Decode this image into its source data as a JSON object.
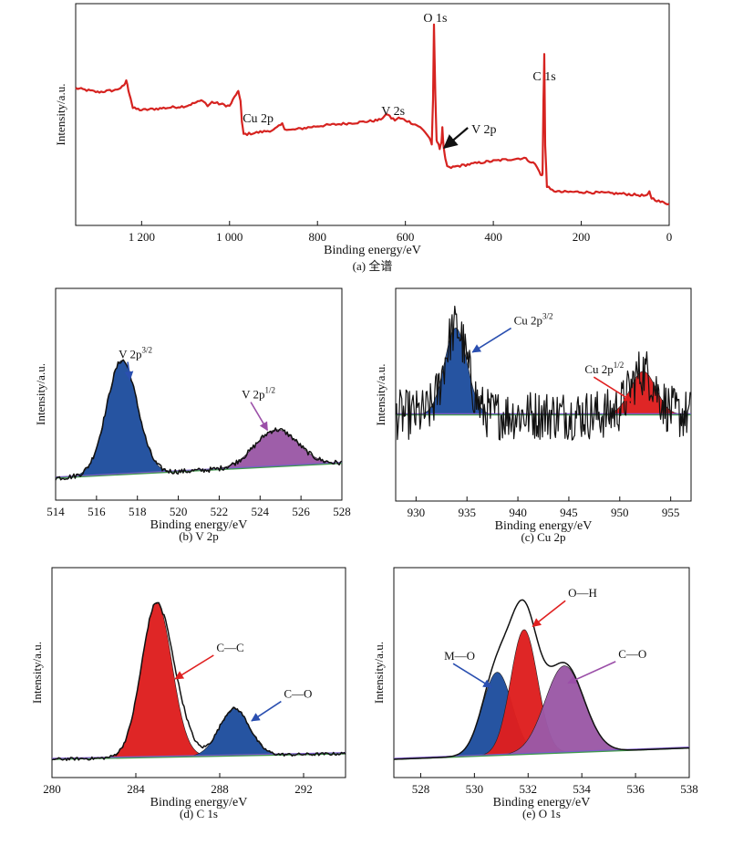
{
  "colors": {
    "survey_line": "#d62320",
    "outline": "#111111",
    "blue_fill": "#1f4e9e",
    "blue_arrow": "#2a4fb0",
    "red_fill": "#de1f1f",
    "red_arrow": "#e02020",
    "purple_fill": "#9b59a6",
    "purple_arrow": "#9b4fa8",
    "baseline_green": "#3f9a4a",
    "baseline_purple": "#7d5cc8"
  },
  "chart_data": [
    {
      "id": "a",
      "type": "line",
      "caption": "(a) 全谱",
      "xlabel": "Binding energy/eV",
      "ylabel": "Intensity/a.u.",
      "xlim": [
        1350,
        0
      ],
      "x_ticks": [
        1200,
        1000,
        800,
        600,
        400,
        200,
        0
      ],
      "x_tick_labels": [
        "1 200",
        "1 000",
        "800",
        "600",
        "400",
        "200",
        "0"
      ],
      "ylim": [
        0,
        100
      ],
      "series": [
        {
          "x": [
            1350,
            1300,
            1260,
            1240,
            1235,
            1230,
            1225,
            1220,
            1200,
            1100,
            1060,
            1050,
            1040,
            1020,
            1000,
            985,
            980,
            975,
            972,
            968,
            960,
            900,
            880,
            875,
            870,
            860,
            800,
            700,
            660,
            640,
            632,
            624,
            615,
            600,
            570,
            555,
            545,
            540,
            537,
            535,
            532,
            529,
            526,
            522,
            518,
            516,
            513,
            509,
            505,
            500,
            480,
            420,
            380,
            330,
            305,
            295,
            290,
            288,
            286,
            284,
            282,
            278,
            270,
            250,
            200,
            100,
            50,
            45,
            40,
            20,
            0
          ],
          "y": [
            61,
            59,
            60,
            62,
            65,
            60,
            56,
            51,
            50,
            52,
            55,
            52,
            54,
            53,
            52,
            58,
            59,
            55,
            44,
            38,
            38,
            40,
            43,
            41,
            40,
            40,
            42,
            44,
            45,
            48,
            46,
            45,
            46,
            45,
            42,
            39,
            36,
            33,
            55,
            93,
            58,
            35,
            33,
            31,
            34,
            41,
            31,
            25,
            22,
            21,
            22,
            24,
            25,
            26,
            23,
            19,
            17,
            18,
            55,
            78,
            32,
            12,
            10,
            9,
            9,
            8,
            7,
            9,
            6,
            4,
            3
          ]
        }
      ],
      "annotations": [
        {
          "text": "O 1s",
          "x": 532
        },
        {
          "text": "C 1s",
          "x": 284
        },
        {
          "text": "V 2s",
          "x": 628
        },
        {
          "text": "Cu 2p",
          "x": 935
        },
        {
          "text": "V 2p",
          "x": 516,
          "arrow": true
        }
      ]
    },
    {
      "id": "b",
      "type": "area",
      "caption": "(b) V 2p",
      "xlabel": "Binding energy/eV",
      "ylabel": "Intensity/a.u.",
      "xlim": [
        514,
        528
      ],
      "x_ticks": [
        514,
        516,
        518,
        520,
        522,
        524,
        526,
        528
      ],
      "ylim": [
        0,
        100
      ],
      "baseline": [
        [
          514,
          4
        ],
        [
          528,
          12
        ]
      ],
      "peaks": [
        {
          "name": "V 2p3/2",
          "label_main": "V 2p",
          "label_sup": "3/2",
          "center": 517.25,
          "height": 62,
          "sigma": 0.75,
          "fill": "blue"
        },
        {
          "name": "V 2p1/2",
          "label_main": "V 2p",
          "label_sup": "1/2",
          "center": 524.8,
          "height": 20,
          "sigma": 1.05,
          "fill": "purple"
        }
      ],
      "envelope_noise": 1.4
    },
    {
      "id": "c",
      "type": "area",
      "caption": "(c) Cu 2p",
      "xlabel": "Binding energy/eV",
      "ylabel": "Intensity/a.u.",
      "xlim": [
        928,
        957
      ],
      "x_ticks": [
        930,
        935,
        940,
        945,
        950,
        955
      ],
      "ylim": [
        0,
        100
      ],
      "baseline": [
        [
          928,
          36
        ],
        [
          957,
          36
        ]
      ],
      "peaks": [
        {
          "name": "Cu 2p3/2",
          "label_main": "Cu 2p",
          "label_sup": "3/2",
          "center": 933.9,
          "height": 48,
          "sigma": 1.1,
          "fill": "blue"
        },
        {
          "name": "Cu 2p1/2",
          "label_main": "Cu 2p",
          "label_sup": "1/2",
          "center": 952.3,
          "height": 24,
          "sigma": 1.25,
          "fill": "red"
        }
      ],
      "envelope_noise": 14
    },
    {
      "id": "d",
      "type": "area",
      "caption": "(d) C 1s",
      "xlabel": "Binding energy/eV",
      "ylabel": "Intensity/a.u.",
      "xlim": [
        280,
        294
      ],
      "x_ticks": [
        280,
        284,
        288,
        292
      ],
      "ylim": [
        0,
        100
      ],
      "baseline": [
        [
          280,
          3
        ],
        [
          294,
          6
        ]
      ],
      "peaks": [
        {
          "name": "C—C",
          "label_main": "C—C",
          "label_sup": "",
          "center": 285.0,
          "height": 82,
          "sigma": 0.72,
          "fill": "red"
        },
        {
          "name": "C—O",
          "label_main": "C—O",
          "label_sup": "",
          "center": 288.7,
          "height": 25,
          "sigma": 0.72,
          "fill": "blue"
        }
      ],
      "envelope_noise": 0.8
    },
    {
      "id": "e",
      "type": "area",
      "caption": "(e) O 1s",
      "xlabel": "Binding energy/eV",
      "ylabel": "Intensity/a.u.",
      "xlim": [
        527,
        538
      ],
      "x_ticks": [
        528,
        530,
        532,
        534,
        536,
        538
      ],
      "ylim": [
        0,
        100
      ],
      "baseline": [
        [
          527,
          3
        ],
        [
          538,
          9
        ]
      ],
      "peaks": [
        {
          "name": "M—O",
          "label_main": "M—O",
          "label_sup": "",
          "center": 530.85,
          "height": 44,
          "sigma": 0.55,
          "fill": "blue"
        },
        {
          "name": "O—H",
          "label_main": "O—H",
          "label_sup": "",
          "center": 531.85,
          "height": 66,
          "sigma": 0.5,
          "fill": "red"
        },
        {
          "name": "C—O",
          "label_main": "C—O",
          "label_sup": "",
          "center": 533.35,
          "height": 46,
          "sigma": 0.72,
          "fill": "purple"
        }
      ],
      "envelope_noise": 0.7
    }
  ]
}
